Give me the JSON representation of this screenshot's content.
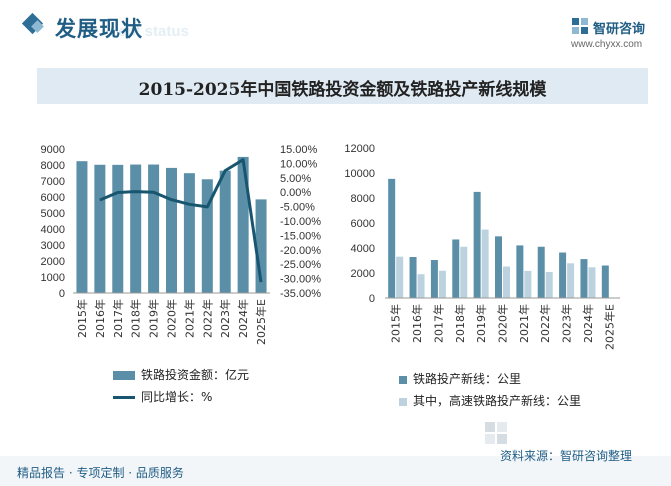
{
  "header": {
    "section_title": "发展现状",
    "section_subtitle_en": "ent status",
    "logo_name": "智研咨询",
    "logo_url": "www.chyxx.com"
  },
  "title": "2015-2025年中国铁路投资金额及铁路投产新线规模",
  "colors": {
    "bar_dark": "#5b8fa8",
    "bar_light": "#bcd3df",
    "line": "#185670",
    "accent": "#2e6e96",
    "title_bg": "#dfeaf3"
  },
  "chart_data": [
    {
      "type": "bar",
      "categories": [
        "2015年",
        "2016年",
        "2017年",
        "2018年",
        "2019年",
        "2020年",
        "2021年",
        "2022年",
        "2023年",
        "2024年",
        "2025年E"
      ],
      "series": [
        {
          "name": "铁路投资金额：亿元",
          "type": "bar",
          "axis": "left",
          "values": [
            8238,
            8015,
            8010,
            8028,
            8029,
            7819,
            7489,
            7109,
            7645,
            8506,
            5850
          ]
        },
        {
          "name": "同比增长：%",
          "type": "line",
          "axis": "right",
          "values": [
            null,
            -2.7,
            -0.1,
            0.2,
            0.0,
            -2.6,
            -4.2,
            -5.1,
            7.5,
            11.3,
            -31.2
          ]
        }
      ],
      "y_left": {
        "min": 0,
        "max": 9000,
        "step": 1000,
        "ticks": [
          "0",
          "1000",
          "2000",
          "3000",
          "4000",
          "5000",
          "6000",
          "7000",
          "8000",
          "9000"
        ]
      },
      "y_right": {
        "min": -35,
        "max": 15,
        "step": 5,
        "ticks": [
          "-35.00%",
          "-30.00%",
          "-25.00%",
          "-20.00%",
          "-15.00%",
          "-10.00%",
          "-5.00%",
          "0.00%",
          "5.00%",
          "10.00%",
          "15.00%"
        ]
      },
      "legend": [
        "铁路投资金额：亿元",
        "同比增长：%"
      ]
    },
    {
      "type": "bar",
      "categories": [
        "2015年",
        "2016年",
        "2017年",
        "2018年",
        "2019年",
        "2020年",
        "2021年",
        "2022年",
        "2023年",
        "2024年",
        "2025年E"
      ],
      "series": [
        {
          "name": "铁路投产新线：公里",
          "values": [
            9531,
            3281,
            3038,
            4683,
            8489,
            4933,
            4208,
            4100,
            3637,
            3113,
            2600
          ]
        },
        {
          "name": "其中，高速铁路投产新线：公里",
          "values": [
            3306,
            1903,
            2182,
            4100,
            5474,
            2521,
            2168,
            2082,
            2776,
            2457,
            null
          ]
        }
      ],
      "y": {
        "min": 0,
        "max": 12000,
        "step": 2000,
        "ticks": [
          "0",
          "2000",
          "4000",
          "6000",
          "8000",
          "10000",
          "12000"
        ]
      },
      "legend": [
        "铁路投产新线：公里",
        "其中，高速铁路投产新线：公里"
      ]
    }
  ],
  "footer": {
    "left": "精品报告 · 专项定制 · 品质服务",
    "source": "资料来源：智研咨询整理"
  }
}
